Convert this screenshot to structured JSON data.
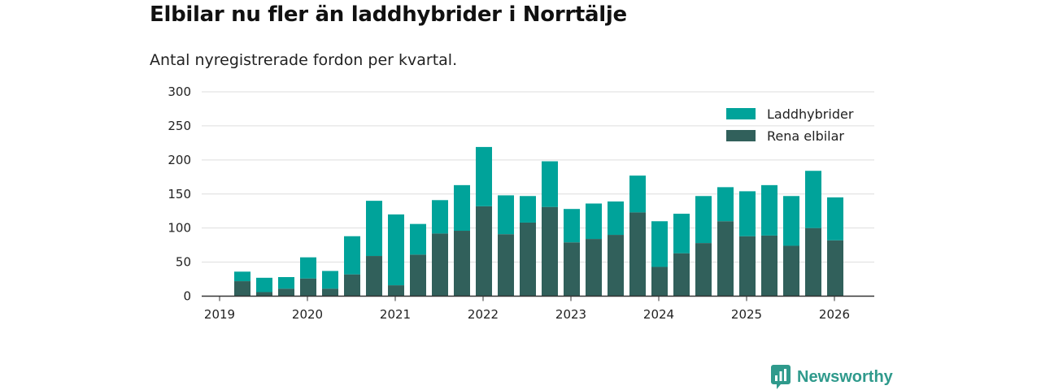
{
  "page": {
    "title": "Elbilar nu fler än laddhybrider i Norrtälje",
    "subtitle": "Antal nyregistrerade fordon per kvartal."
  },
  "brand": {
    "name": "Newsworthy",
    "icon": "newsworthy-logo-icon"
  },
  "colors": {
    "phev": "#00a39a",
    "bev": "#31605b",
    "grid": "#dddddd",
    "axis": "#333333",
    "brand": "#2f9a8c"
  },
  "chart_data": {
    "type": "bar",
    "stacked": true,
    "title": "Elbilar nu fler än laddhybrider i Norrtälje",
    "subtitle": "Antal nyregistrerade fordon per kvartal.",
    "xlabel": "",
    "ylabel": "",
    "ylim": [
      0,
      300
    ],
    "yticks": [
      0,
      50,
      100,
      150,
      200,
      250,
      300
    ],
    "xticks": [
      "2019",
      "2020",
      "2021",
      "2022",
      "2023",
      "2024",
      "2025",
      "2026"
    ],
    "grid": true,
    "legend_position": "top-right",
    "categories": [
      "2019 Q2",
      "2019 Q3",
      "2019 Q4",
      "2020 Q1",
      "2020 Q2",
      "2020 Q3",
      "2020 Q4",
      "2021 Q1",
      "2021 Q2",
      "2021 Q3",
      "2021 Q4",
      "2022 Q1",
      "2022 Q2",
      "2022 Q3",
      "2022 Q4",
      "2023 Q1",
      "2023 Q2",
      "2023 Q3",
      "2023 Q4",
      "2024 Q1",
      "2024 Q2",
      "2024 Q3",
      "2024 Q4",
      "2025 Q1",
      "2025 Q2",
      "2025 Q3",
      "2025 Q4",
      "2026 Q1"
    ],
    "series": [
      {
        "name": "Rena elbilar",
        "values": [
          22,
          6,
          11,
          26,
          11,
          32,
          59,
          16,
          61,
          92,
          96,
          132,
          91,
          108,
          131,
          79,
          84,
          90,
          123,
          43,
          63,
          78,
          110,
          88,
          89,
          74,
          100,
          82
        ]
      },
      {
        "name": "Laddhybrider",
        "values": [
          14,
          21,
          17,
          31,
          26,
          56,
          81,
          104,
          45,
          49,
          67,
          87,
          57,
          39,
          67,
          49,
          52,
          49,
          54,
          67,
          58,
          69,
          50,
          66,
          74,
          73,
          84,
          63
        ]
      }
    ],
    "legend": [
      "Laddhybrider",
      "Rena elbilar"
    ]
  }
}
